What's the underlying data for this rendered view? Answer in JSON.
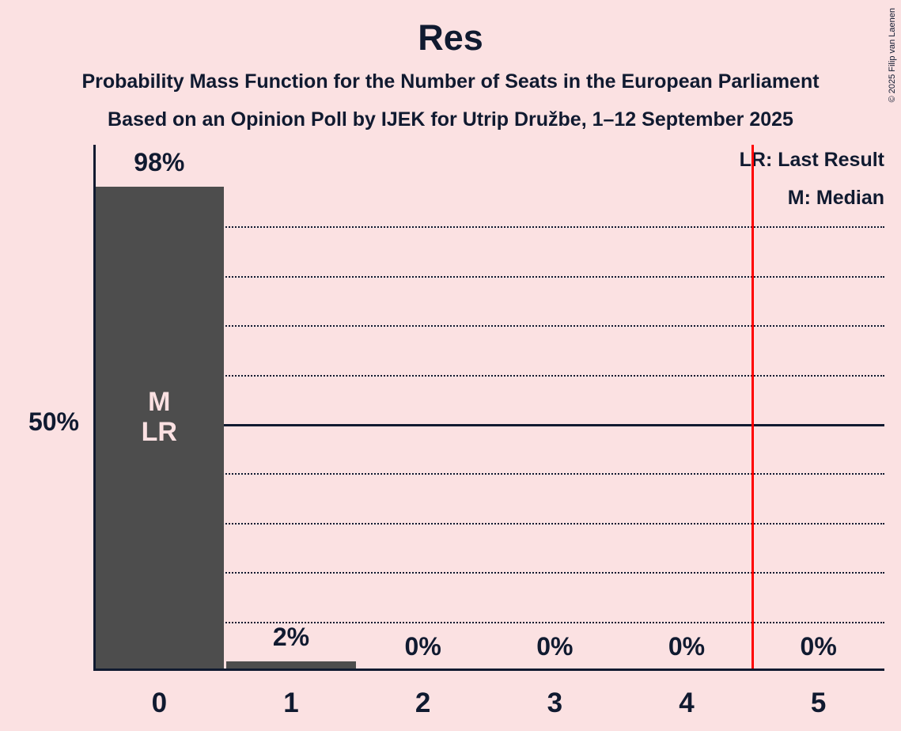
{
  "title": "Res",
  "subtitle1": "Probability Mass Function for the Number of Seats in the European Parliament",
  "subtitle2": "Based on an Opinion Poll by IJEK for Utrip Družbe, 1–12 September 2025",
  "copyright": "© 2025 Filip van Laenen",
  "legend": {
    "last_result": "LR: Last Result",
    "median": "M: Median"
  },
  "y_axis": {
    "label_50": "50%"
  },
  "colors": {
    "background": "#FBE1E2",
    "bar": "#4D4D4D",
    "text": "#101A30",
    "in_bar_label": "#FBE1E2",
    "last_result_line": "#FF0000"
  },
  "chart_data": {
    "type": "bar",
    "categories": [
      "0",
      "1",
      "2",
      "3",
      "4",
      "5"
    ],
    "values": [
      98,
      2,
      0,
      0,
      0,
      0
    ],
    "value_labels": [
      "98%",
      "2%",
      "0%",
      "0%",
      "0%",
      "0%"
    ],
    "title": "Res",
    "xlabel": "",
    "ylabel": "",
    "ylim": [
      0,
      100
    ],
    "grid": {
      "interval_pct": 10,
      "solid_at_pct": 50,
      "style": "dotted"
    },
    "legend_position": "top-right",
    "annotations": {
      "bar_index": 0,
      "lines": [
        "M",
        "LR"
      ]
    },
    "last_result_x": 4.5
  }
}
